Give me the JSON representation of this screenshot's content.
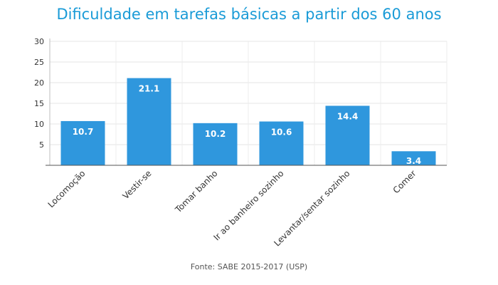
{
  "chart_data": {
    "type": "bar",
    "title": "Dificuldade em tarefas básicas a partir dos 60 anos",
    "categories": [
      "Locomoção",
      "Vestir-se",
      "Tomar banho",
      "Ir ao banheiro sozinho",
      "Levantar/sentar sozinho",
      "Comer"
    ],
    "values": [
      10.7,
      21.1,
      10.2,
      10.6,
      14.4,
      3.4
    ],
    "value_labels": [
      "10.7",
      "21.1",
      "10.2",
      "10.6",
      "14.4",
      "3.4"
    ],
    "yticks": [
      "30",
      "25",
      "20",
      "15",
      "10",
      "5"
    ],
    "ylim": [
      0,
      30
    ],
    "grid": true,
    "bar_color": "#2f97dd",
    "title_color": "#1a9bd7",
    "source": "Fonte: SABE 2015-2017 (USP)"
  }
}
